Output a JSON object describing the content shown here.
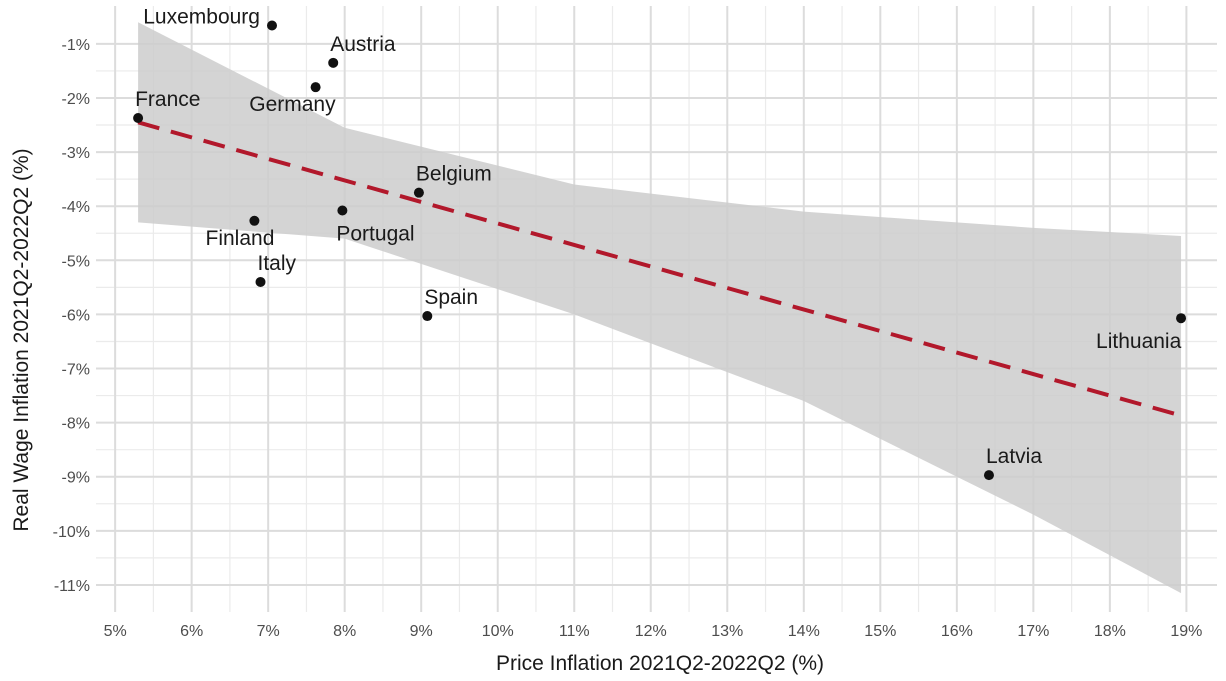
{
  "chart_data": {
    "type": "scatter",
    "xlabel": "Price Inflation 2021Q2-2022Q2 (%)",
    "ylabel": "Real Wage Inflation 2021Q2-2022Q2 (%)",
    "xlim": [
      4.75,
      19.4
    ],
    "ylim": [
      -11.5,
      -0.3
    ],
    "x_ticks": [
      5,
      6,
      7,
      8,
      9,
      10,
      11,
      12,
      13,
      14,
      15,
      16,
      17,
      18,
      19
    ],
    "x_tick_labels": [
      "5%",
      "6%",
      "7%",
      "8%",
      "9%",
      "10%",
      "11%",
      "12%",
      "13%",
      "14%",
      "15%",
      "16%",
      "17%",
      "18%",
      "19%"
    ],
    "y_ticks": [
      -1,
      -2,
      -3,
      -4,
      -5,
      -6,
      -7,
      -8,
      -9,
      -10,
      -11
    ],
    "y_tick_labels": [
      "-1%",
      "-2%",
      "-3%",
      "-4%",
      "-5%",
      "-6%",
      "-7%",
      "-8%",
      "-9%",
      "-10%",
      "-11%"
    ],
    "grid": true,
    "points": [
      {
        "label": "Luxembourg",
        "x": 7.05,
        "y": -0.66
      },
      {
        "label": "Austria",
        "x": 7.85,
        "y": -1.35
      },
      {
        "label": "Germany",
        "x": 7.62,
        "y": -1.8
      },
      {
        "label": "France",
        "x": 5.3,
        "y": -2.37
      },
      {
        "label": "Belgium",
        "x": 8.97,
        "y": -3.75
      },
      {
        "label": "Portugal",
        "x": 7.97,
        "y": -4.08
      },
      {
        "label": "Finland",
        "x": 6.82,
        "y": -4.27
      },
      {
        "label": "Italy",
        "x": 6.9,
        "y": -5.4
      },
      {
        "label": "Spain",
        "x": 9.08,
        "y": -6.03
      },
      {
        "label": "Lithuania",
        "x": 18.93,
        "y": -6.07
      },
      {
        "label": "Latvia",
        "x": 16.42,
        "y": -8.97
      }
    ],
    "fit_line": {
      "color": "#b2182b",
      "style": "dashed",
      "x": [
        5.3,
        18.93
      ],
      "y": [
        -2.45,
        -7.87
      ]
    },
    "confidence_band": {
      "color": "#cccccc",
      "x": [
        5.3,
        8.0,
        11.0,
        14.0,
        17.0,
        18.93
      ],
      "upper": [
        -0.6,
        -2.55,
        -3.6,
        -4.1,
        -4.4,
        -4.55
      ],
      "lower": [
        -4.3,
        -4.6,
        -6.0,
        -7.6,
        -9.7,
        -11.15
      ]
    },
    "label_placement": {
      "Luxembourg": "left",
      "Austria": "upper-right",
      "Germany": "lower-left",
      "France": "upper-right",
      "Belgium": "upper-right",
      "Portugal": "below",
      "Finland": "lower-left",
      "Italy": "upper-right",
      "Spain": "upper-right",
      "Lithuania": "below",
      "Latvia": "upper-right"
    }
  }
}
